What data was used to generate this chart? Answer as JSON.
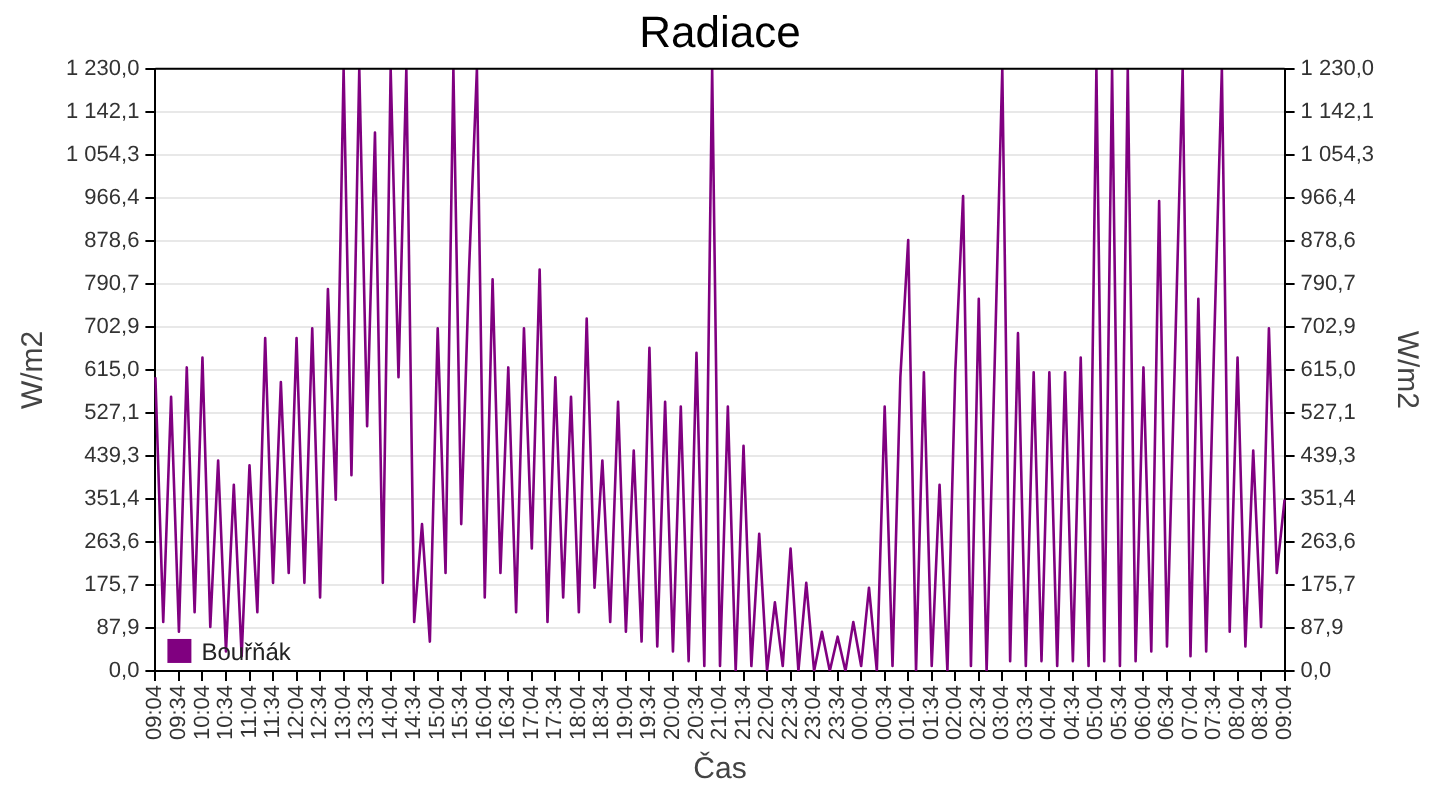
{
  "chart_data": {
    "type": "line",
    "title": "Radiace",
    "xlabel": "Čas",
    "ylabel": "W/m2",
    "y2label": "W/m2",
    "categories": [
      "09:04",
      null,
      null,
      "09:34",
      null,
      null,
      "10:04",
      null,
      null,
      "10:34",
      null,
      null,
      "11:04",
      null,
      null,
      "11:34",
      null,
      null,
      "12:04",
      null,
      null,
      "12:34",
      null,
      null,
      "13:04",
      null,
      null,
      "13:34",
      null,
      null,
      "14:04",
      null,
      null,
      "14:34",
      null,
      null,
      "15:04",
      null,
      null,
      "15:34",
      null,
      null,
      "16:04",
      null,
      null,
      "16:34",
      null,
      null,
      "17:04",
      null,
      null,
      "17:34",
      null,
      null,
      "18:04",
      null,
      null,
      "18:34",
      null,
      null,
      "19:04",
      null,
      null,
      "19:34",
      null,
      null,
      "20:04",
      null,
      null,
      "20:34",
      null,
      null,
      "21:04",
      null,
      null,
      "21:34",
      null,
      null,
      "22:04",
      null,
      null,
      "22:34",
      null,
      null,
      "23:04",
      null,
      null,
      "23:34",
      null,
      null,
      "00:04",
      null,
      null,
      "00:34",
      null,
      null,
      "01:04",
      null,
      null,
      "01:34",
      null,
      null,
      "02:04",
      null,
      null,
      "02:34",
      null,
      null,
      "03:04",
      null,
      null,
      "03:34",
      null,
      null,
      "04:04",
      null,
      null,
      "04:34",
      null,
      null,
      "05:04",
      null,
      null,
      "05:34",
      null,
      null,
      "06:04",
      null,
      null,
      "06:34",
      null,
      null,
      "07:04",
      null,
      null,
      "07:34",
      null,
      null,
      "08:04",
      null,
      null,
      "08:34",
      null,
      null,
      "09:04"
    ],
    "ylim": [
      0,
      1230
    ],
    "yticks": [
      {
        "value": 0,
        "label": "0,0"
      },
      {
        "value": 87.9,
        "label": "87,9"
      },
      {
        "value": 175.7,
        "label": "175,7"
      },
      {
        "value": 263.6,
        "label": "263,6"
      },
      {
        "value": 351.4,
        "label": "351,4"
      },
      {
        "value": 439.3,
        "label": "439,3"
      },
      {
        "value": 527.1,
        "label": "527,1"
      },
      {
        "value": 615,
        "label": "615,0"
      },
      {
        "value": 702.9,
        "label": "702,9"
      },
      {
        "value": 790.7,
        "label": "790,7"
      },
      {
        "value": 878.6,
        "label": "878,6"
      },
      {
        "value": 966.4,
        "label": "966,4"
      },
      {
        "value": 1054.3,
        "label": "1 054,3"
      },
      {
        "value": 1142.1,
        "label": "1 142,1"
      },
      {
        "value": 1230,
        "label": "1 230,0"
      }
    ],
    "y2lim": [
      0,
      1230
    ],
    "y2ticks": [
      {
        "value": 0,
        "label": "0,0"
      },
      {
        "value": 87.9,
        "label": "87,9"
      },
      {
        "value": 175.7,
        "label": "175,7"
      },
      {
        "value": 263.6,
        "label": "263,6"
      },
      {
        "value": 351.4,
        "label": "351,4"
      },
      {
        "value": 439.3,
        "label": "439,3"
      },
      {
        "value": 527.1,
        "label": "527,1"
      },
      {
        "value": 615,
        "label": "615,0"
      },
      {
        "value": 702.9,
        "label": "702,9"
      },
      {
        "value": 790.7,
        "label": "790,7"
      },
      {
        "value": 878.6,
        "label": "878,6"
      },
      {
        "value": 966.4,
        "label": "966,4"
      },
      {
        "value": 1054.3,
        "label": "1 054,3"
      },
      {
        "value": 1142.1,
        "label": "1 142,1"
      },
      {
        "value": 1230,
        "label": "1 230,0"
      }
    ],
    "grid": "y",
    "legend": "bottom left",
    "marker": "none",
    "line_style": "solid",
    "series": [
      {
        "name": "Bouřňák",
        "color": "#800080",
        "values": [
          600,
          100,
          560,
          80,
          620,
          120,
          640,
          90,
          430,
          40,
          380,
          30,
          420,
          120,
          680,
          180,
          590,
          200,
          680,
          180,
          700,
          150,
          780,
          350,
          1230,
          400,
          1230,
          500,
          1100,
          180,
          1230,
          600,
          1230,
          100,
          300,
          60,
          700,
          200,
          1230,
          300,
          820,
          1230,
          150,
          800,
          200,
          620,
          120,
          700,
          250,
          820,
          100,
          600,
          150,
          560,
          120,
          720,
          170,
          430,
          100,
          550,
          80,
          450,
          60,
          660,
          50,
          550,
          40,
          540,
          20,
          650,
          10,
          1230,
          10,
          540,
          0,
          460,
          10,
          280,
          0,
          140,
          10,
          250,
          0,
          180,
          0,
          80,
          0,
          70,
          0,
          100,
          10,
          170,
          0,
          540,
          10,
          600,
          880,
          0,
          610,
          10,
          380,
          0,
          610,
          970,
          10,
          760,
          0,
          610,
          1230,
          20,
          690,
          10,
          610,
          20,
          610,
          10,
          610,
          20,
          640,
          10,
          1230,
          20,
          1230,
          10,
          1230,
          20,
          620,
          40,
          960,
          50,
          630,
          1230,
          30,
          760,
          40,
          660,
          1230,
          80,
          640,
          50,
          450,
          90,
          700,
          200,
          350
        ]
      }
    ]
  }
}
